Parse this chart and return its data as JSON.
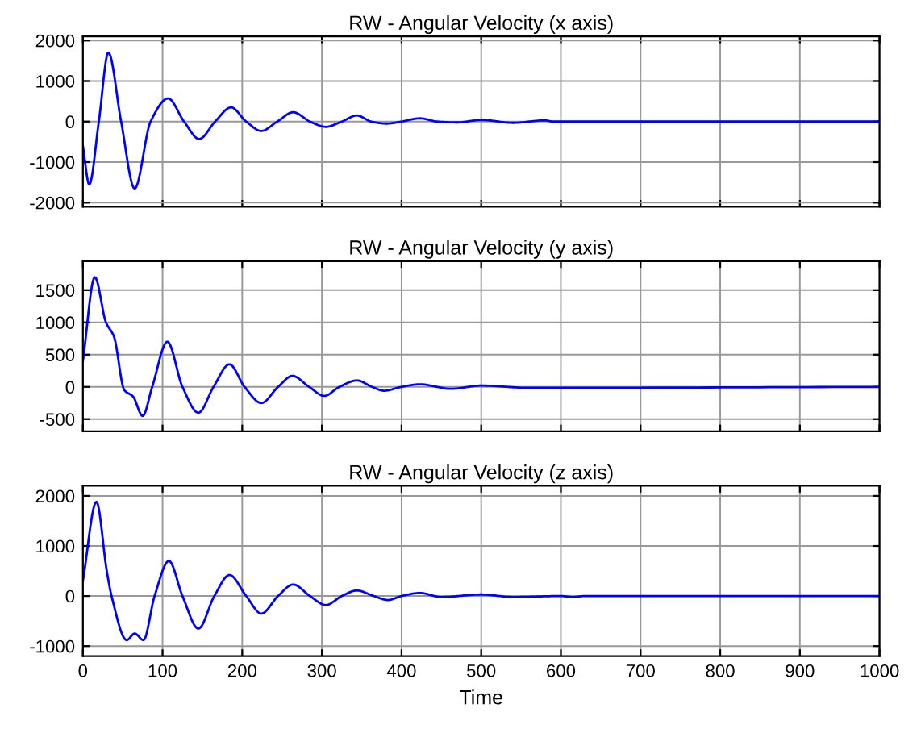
{
  "chart_data": [
    {
      "type": "line",
      "title": "RW - Angular Velocity (x axis)",
      "xlim": [
        0,
        1000
      ],
      "xticks": [
        0,
        100,
        200,
        300,
        400,
        500,
        600,
        700,
        800,
        900,
        1000
      ],
      "ylim": [
        -2100,
        2100
      ],
      "yticks": [
        -2000,
        -1000,
        0,
        1000,
        2000
      ],
      "grid": true,
      "tick_labels": "y",
      "x": [
        0,
        8,
        20,
        32,
        48,
        65,
        85,
        107,
        127,
        146,
        166,
        186,
        205,
        224,
        244,
        264,
        285,
        305,
        325,
        344,
        362,
        381,
        400,
        423,
        445,
        470,
        500,
        540,
        580,
        590,
        1000
      ],
      "series": [
        {
          "color": "#0000ff",
          "values": [
            -600,
            -1550,
            0,
            1700,
            0,
            -1650,
            0,
            570,
            0,
            -430,
            0,
            350,
            0,
            -230,
            0,
            230,
            0,
            -130,
            0,
            150,
            0,
            -50,
            0,
            80,
            0,
            -20,
            40,
            -30,
            30,
            0,
            0
          ]
        }
      ]
    },
    {
      "type": "line",
      "title": "RW - Angular Velocity (y axis)",
      "xlim": [
        0,
        1000
      ],
      "xticks": [
        0,
        100,
        200,
        300,
        400,
        500,
        600,
        700,
        800,
        900,
        1000
      ],
      "ylim": [
        -690,
        1950
      ],
      "yticks": [
        -500,
        0,
        500,
        1000,
        1500
      ],
      "grid": true,
      "tick_labels": "y",
      "x": [
        0,
        15,
        29,
        39,
        52,
        63,
        75,
        87,
        106,
        125,
        145,
        164,
        184,
        203,
        224,
        245,
        263,
        284,
        303,
        322,
        344,
        363,
        378,
        400,
        423,
        462,
        500,
        560,
        1000
      ],
      "series": [
        {
          "color": "#0000ff",
          "values": [
            400,
            1700,
            1000,
            780,
            -50,
            -150,
            -450,
            0,
            700,
            0,
            -400,
            0,
            350,
            0,
            -250,
            0,
            170,
            0,
            -140,
            0,
            100,
            0,
            -60,
            0,
            40,
            -30,
            20,
            -15,
            0
          ]
        }
      ]
    },
    {
      "type": "line",
      "title": "RW - Angular Velocity (z axis)",
      "xlabel": "Time",
      "xlim": [
        0,
        1000
      ],
      "xticks": [
        0,
        100,
        200,
        300,
        400,
        500,
        600,
        700,
        800,
        900,
        1000
      ],
      "ylim": [
        -1200,
        2200
      ],
      "yticks": [
        -1000,
        0,
        1000,
        2000
      ],
      "grid": true,
      "x": [
        0,
        17,
        30,
        36,
        55,
        65,
        76,
        90,
        108,
        125,
        145,
        165,
        184,
        205,
        224,
        245,
        264,
        285,
        305,
        325,
        344,
        365,
        383,
        400,
        423,
        450,
        500,
        540,
        600,
        615,
        630,
        1000
      ],
      "series": [
        {
          "color": "#0000ff",
          "values": [
            300,
            1880,
            500,
            0,
            -880,
            -750,
            -880,
            0,
            700,
            0,
            -650,
            0,
            420,
            0,
            -350,
            0,
            230,
            0,
            -180,
            0,
            110,
            0,
            -80,
            0,
            60,
            -20,
            30,
            -20,
            0,
            -20,
            0,
            0
          ]
        }
      ]
    }
  ]
}
